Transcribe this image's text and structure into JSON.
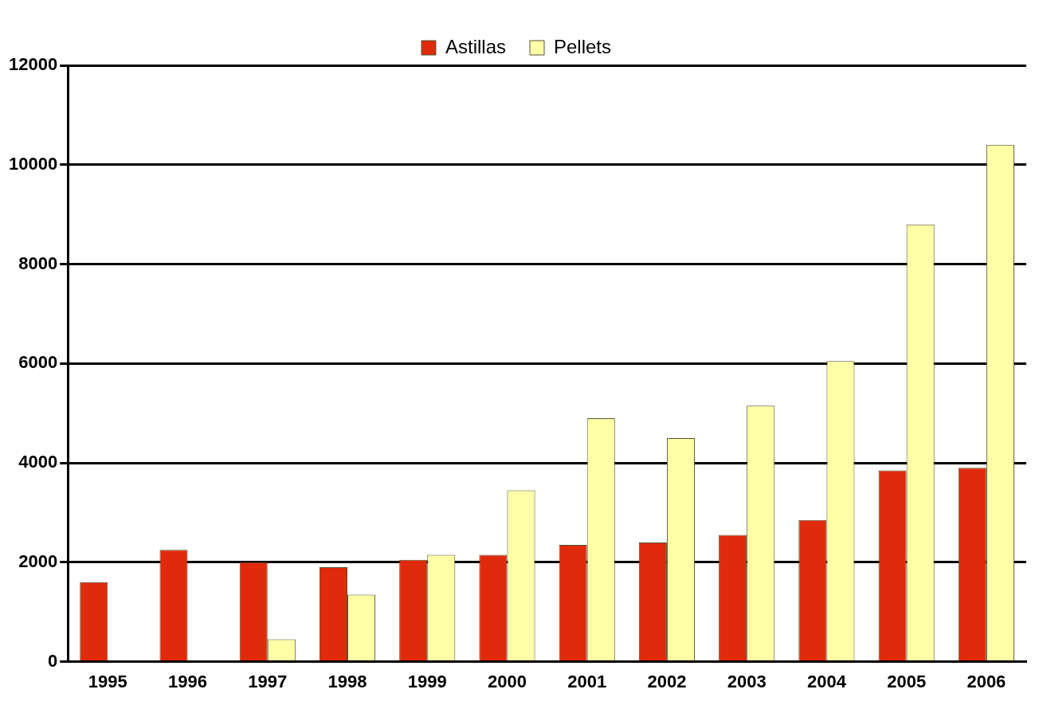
{
  "chart_data": {
    "type": "bar",
    "categories": [
      "1995",
      "1996",
      "1997",
      "1998",
      "1999",
      "2000",
      "2001",
      "2002",
      "2003",
      "2004",
      "2005",
      "2006"
    ],
    "series": [
      {
        "name": "Astillas",
        "color": "#e02a0c",
        "values": [
          1600,
          2250,
          2000,
          1900,
          2050,
          2150,
          2350,
          2400,
          2550,
          2850,
          3850,
          3900
        ]
      },
      {
        "name": "Pellets",
        "color": "#ffffa8",
        "values": [
          null,
          null,
          450,
          1350,
          2150,
          3450,
          4900,
          4500,
          5150,
          6050,
          8800,
          10400
        ]
      }
    ],
    "ylim": [
      0,
      12000
    ],
    "yticks": [
      0,
      2000,
      4000,
      6000,
      8000,
      10000,
      12000
    ],
    "grid": "y",
    "legend": "top"
  }
}
